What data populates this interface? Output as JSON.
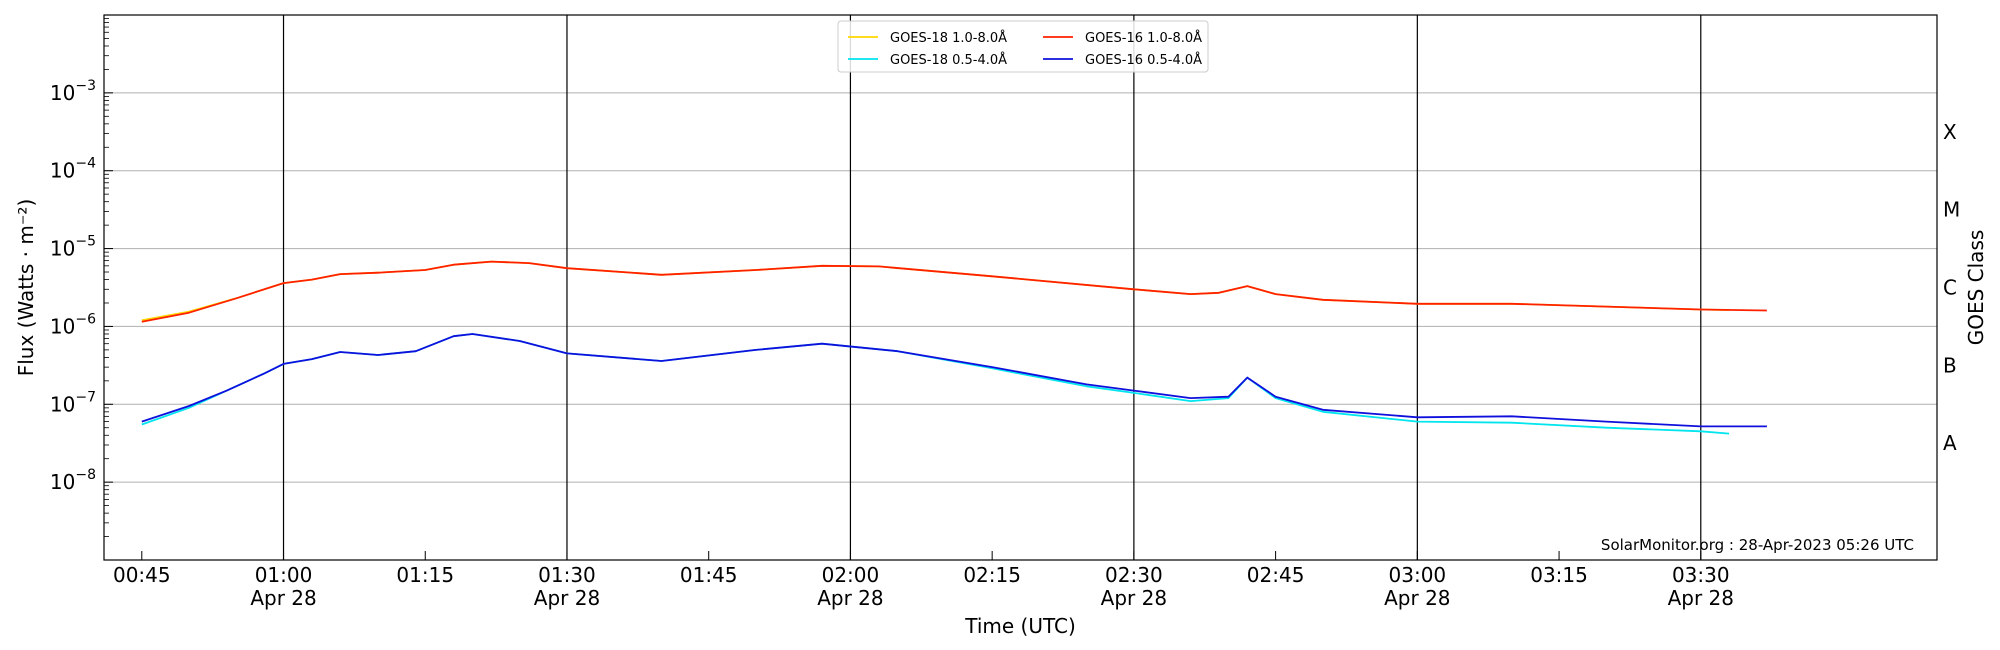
{
  "chart_data": {
    "type": "line",
    "title": "",
    "xlabel": "Time (UTC)",
    "ylabel": "Flux (Watts · m⁻²)",
    "right_axis_label": "GOES Class",
    "y_scale": "log",
    "ylim": [
      1e-09,
      0.01
    ],
    "xlim": [
      "00:41",
      "03:55"
    ],
    "grid": "horizontal",
    "legend_position": "top-center",
    "y_ticks": [
      {
        "value": 1e-08,
        "base": "10",
        "exp": "−8"
      },
      {
        "value": 1e-07,
        "base": "10",
        "exp": "−7"
      },
      {
        "value": 1e-06,
        "base": "10",
        "exp": "−6"
      },
      {
        "value": 1e-05,
        "base": "10",
        "exp": "−5"
      },
      {
        "value": 0.0001,
        "base": "10",
        "exp": "−4"
      },
      {
        "value": 0.001,
        "base": "10",
        "exp": "−3"
      }
    ],
    "x_ticks": [
      {
        "time": "00:45",
        "label": "00:45",
        "sublabel": ""
      },
      {
        "time": "01:00",
        "label": "01:00",
        "sublabel": "Apr 28"
      },
      {
        "time": "01:15",
        "label": "01:15",
        "sublabel": ""
      },
      {
        "time": "01:30",
        "label": "01:30",
        "sublabel": "Apr 28"
      },
      {
        "time": "01:45",
        "label": "01:45",
        "sublabel": ""
      },
      {
        "time": "02:00",
        "label": "02:00",
        "sublabel": "Apr 28"
      },
      {
        "time": "02:15",
        "label": "02:15",
        "sublabel": ""
      },
      {
        "time": "02:30",
        "label": "02:30",
        "sublabel": "Apr 28"
      },
      {
        "time": "02:45",
        "label": "02:45",
        "sublabel": ""
      },
      {
        "time": "03:00",
        "label": "03:00",
        "sublabel": "Apr 28"
      },
      {
        "time": "03:15",
        "label": "03:15",
        "sublabel": ""
      },
      {
        "time": "03:30",
        "label": "03:30",
        "sublabel": "Apr 28"
      }
    ],
    "vertical_lines": [
      "01:00",
      "01:30",
      "02:00",
      "02:30",
      "03:00",
      "03:30"
    ],
    "goes_classes": [
      {
        "label": "A",
        "value": 3.16e-08
      },
      {
        "label": "B",
        "value": 3.16e-07
      },
      {
        "label": "C",
        "value": 3.16e-06
      },
      {
        "label": "M",
        "value": 3.16e-05
      },
      {
        "label": "X",
        "value": 0.000316
      }
    ],
    "credit": "SolarMonitor.org : 28-Apr-2023 05:26 UTC",
    "series": [
      {
        "name": "GOES-18 1.0-8.0Å",
        "color": "#ffd700",
        "points": [
          [
            "00:45",
            1.2e-06
          ],
          [
            "00:50",
            1.55e-06
          ],
          [
            "00:55",
            2.3e-06
          ],
          [
            "01:00",
            3.6e-06
          ],
          [
            "01:03",
            4e-06
          ],
          [
            "01:06",
            4.7e-06
          ],
          [
            "01:10",
            4.9e-06
          ],
          [
            "01:15",
            5.3e-06
          ],
          [
            "01:18",
            6.2e-06
          ],
          [
            "01:22",
            6.8e-06
          ],
          [
            "01:26",
            6.5e-06
          ],
          [
            "01:30",
            5.6e-06
          ],
          [
            "01:40",
            4.6e-06
          ],
          [
            "01:50",
            5.3e-06
          ],
          [
            "01:57",
            6e-06
          ],
          [
            "02:03",
            5.9e-06
          ],
          [
            "02:15",
            4.4e-06
          ],
          [
            "02:30",
            3e-06
          ],
          [
            "02:36",
            2.6e-06
          ],
          [
            "02:39",
            2.7e-06
          ],
          [
            "02:42",
            3.3e-06
          ],
          [
            "02:45",
            2.6e-06
          ],
          [
            "02:50",
            2.2e-06
          ],
          [
            "03:00",
            1.95e-06
          ],
          [
            "03:10",
            1.95e-06
          ],
          [
            "03:20",
            1.8e-06
          ],
          [
            "03:30",
            1.65e-06
          ],
          [
            "03:33",
            1.62e-06
          ]
        ]
      },
      {
        "name": "GOES-18 0.5-4.0Å",
        "color": "#00e5ee",
        "points": [
          [
            "00:45",
            5.5e-08
          ],
          [
            "00:50",
            9e-08
          ],
          [
            "00:54",
            1.5e-07
          ],
          [
            "00:58",
            2.5e-07
          ],
          [
            "01:00",
            3.3e-07
          ],
          [
            "01:03",
            3.8e-07
          ],
          [
            "01:06",
            4.7e-07
          ],
          [
            "01:10",
            4.3e-07
          ],
          [
            "01:14",
            4.8e-07
          ],
          [
            "01:18",
            7.5e-07
          ],
          [
            "01:20",
            8e-07
          ],
          [
            "01:25",
            6.5e-07
          ],
          [
            "01:30",
            4.5e-07
          ],
          [
            "01:40",
            3.6e-07
          ],
          [
            "01:50",
            5e-07
          ],
          [
            "01:57",
            6e-07
          ],
          [
            "02:05",
            4.8e-07
          ],
          [
            "02:15",
            2.9e-07
          ],
          [
            "02:25",
            1.7e-07
          ],
          [
            "02:30",
            1.4e-07
          ],
          [
            "02:36",
            1.1e-07
          ],
          [
            "02:40",
            1.2e-07
          ],
          [
            "02:42",
            2.2e-07
          ],
          [
            "02:45",
            1.2e-07
          ],
          [
            "02:50",
            8e-08
          ],
          [
            "03:00",
            6e-08
          ],
          [
            "03:10",
            5.8e-08
          ],
          [
            "03:20",
            5e-08
          ],
          [
            "03:30",
            4.5e-08
          ],
          [
            "03:33",
            4.2e-08
          ]
        ]
      },
      {
        "name": "GOES-16 1.0-8.0Å",
        "color": "#ff2000",
        "points": [
          [
            "00:45",
            1.15e-06
          ],
          [
            "00:50",
            1.5e-06
          ],
          [
            "00:55",
            2.3e-06
          ],
          [
            "01:00",
            3.6e-06
          ],
          [
            "01:03",
            4e-06
          ],
          [
            "01:06",
            4.7e-06
          ],
          [
            "01:10",
            4.9e-06
          ],
          [
            "01:15",
            5.3e-06
          ],
          [
            "01:18",
            6.2e-06
          ],
          [
            "01:22",
            6.8e-06
          ],
          [
            "01:26",
            6.5e-06
          ],
          [
            "01:30",
            5.6e-06
          ],
          [
            "01:40",
            4.6e-06
          ],
          [
            "01:50",
            5.3e-06
          ],
          [
            "01:57",
            6e-06
          ],
          [
            "02:03",
            5.9e-06
          ],
          [
            "02:15",
            4.4e-06
          ],
          [
            "02:30",
            3e-06
          ],
          [
            "02:36",
            2.6e-06
          ],
          [
            "02:39",
            2.7e-06
          ],
          [
            "02:42",
            3.3e-06
          ],
          [
            "02:45",
            2.6e-06
          ],
          [
            "02:50",
            2.2e-06
          ],
          [
            "03:00",
            1.95e-06
          ],
          [
            "03:10",
            1.95e-06
          ],
          [
            "03:20",
            1.8e-06
          ],
          [
            "03:30",
            1.65e-06
          ],
          [
            "03:37",
            1.6e-06
          ]
        ]
      },
      {
        "name": "GOES-16 0.5-4.0Å",
        "color": "#1010dd",
        "points": [
          [
            "00:45",
            6e-08
          ],
          [
            "00:50",
            9.5e-08
          ],
          [
            "00:54",
            1.5e-07
          ],
          [
            "00:58",
            2.5e-07
          ],
          [
            "01:00",
            3.3e-07
          ],
          [
            "01:03",
            3.8e-07
          ],
          [
            "01:06",
            4.7e-07
          ],
          [
            "01:10",
            4.3e-07
          ],
          [
            "01:14",
            4.8e-07
          ],
          [
            "01:18",
            7.5e-07
          ],
          [
            "01:20",
            8e-07
          ],
          [
            "01:25",
            6.5e-07
          ],
          [
            "01:30",
            4.5e-07
          ],
          [
            "01:40",
            3.6e-07
          ],
          [
            "01:50",
            5e-07
          ],
          [
            "01:57",
            6e-07
          ],
          [
            "02:05",
            4.8e-07
          ],
          [
            "02:15",
            3e-07
          ],
          [
            "02:25",
            1.8e-07
          ],
          [
            "02:30",
            1.5e-07
          ],
          [
            "02:36",
            1.2e-07
          ],
          [
            "02:40",
            1.25e-07
          ],
          [
            "02:42",
            2.2e-07
          ],
          [
            "02:45",
            1.25e-07
          ],
          [
            "02:50",
            8.5e-08
          ],
          [
            "03:00",
            6.8e-08
          ],
          [
            "03:10",
            7e-08
          ],
          [
            "03:20",
            6e-08
          ],
          [
            "03:30",
            5.2e-08
          ],
          [
            "03:37",
            5.2e-08
          ]
        ]
      }
    ]
  }
}
